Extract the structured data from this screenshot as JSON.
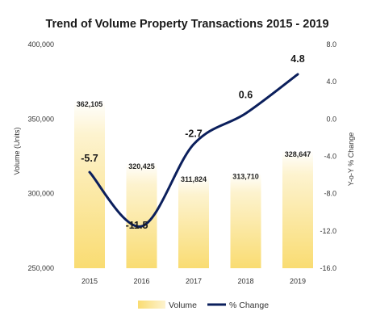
{
  "chart_data": {
    "type": "bar",
    "title": "Trend of Volume Property Transactions 2015 - 2019",
    "categories": [
      "2015",
      "2016",
      "2017",
      "2018",
      "2019"
    ],
    "series": [
      {
        "name": "Volume",
        "type": "bar",
        "axis": "left",
        "values": [
          362105,
          320425,
          311824,
          313710,
          328647
        ],
        "labels": [
          "362,105",
          "320,425",
          "311,824",
          "313,710",
          "328,647"
        ],
        "color": "#f9dc72"
      },
      {
        "name": "% Change",
        "type": "line",
        "axis": "right",
        "values": [
          -5.7,
          -11.5,
          -2.7,
          0.6,
          4.8
        ],
        "labels": [
          "-5.7",
          "-11.5",
          "-2.7",
          "0.6",
          "4.8"
        ],
        "color": "#0b1f5c"
      }
    ],
    "ylabel": "Volume (Units)",
    "y2label": "Y-o-Y % Change",
    "ylim": [
      250000,
      400000
    ],
    "y2lim": [
      -16,
      8
    ],
    "yticks": [
      "250,000",
      "300,000",
      "350,000",
      "400,000"
    ],
    "y2ticks": [
      "-16.0",
      "-12.0",
      "-8.0",
      "-4.0",
      "0.0",
      "4.0",
      "8.0"
    ],
    "grid": false,
    "legend": "bottom"
  }
}
